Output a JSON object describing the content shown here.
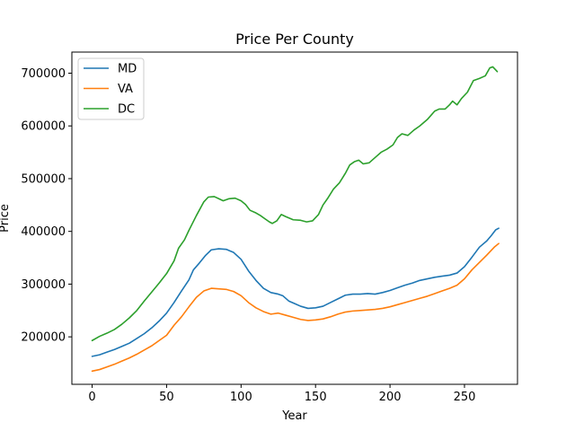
{
  "chart_data": {
    "type": "line",
    "title": "Price Per County",
    "xlabel": "Year",
    "ylabel": "Price",
    "xlim": [
      -13.6,
      285.6
    ],
    "ylim": [
      110000,
      740000
    ],
    "xticks": [
      0,
      50,
      100,
      150,
      200,
      250
    ],
    "xtick_labels": [
      "0",
      "50",
      "100",
      "150",
      "200",
      "250"
    ],
    "yticks": [
      200000,
      300000,
      400000,
      500000,
      600000,
      700000
    ],
    "ytick_labels": [
      "200000",
      "300000",
      "400000",
      "500000",
      "600000",
      "700000"
    ],
    "grid": false,
    "legend": "top-left",
    "series": [
      {
        "name": "MD",
        "color": "#1f77b4",
        "points": [
          [
            0,
            163000
          ],
          [
            5,
            166000
          ],
          [
            10,
            171000
          ],
          [
            15,
            176000
          ],
          [
            20,
            182000
          ],
          [
            25,
            188000
          ],
          [
            30,
            197000
          ],
          [
            35,
            206000
          ],
          [
            40,
            217000
          ],
          [
            45,
            230000
          ],
          [
            50,
            245000
          ],
          [
            55,
            265000
          ],
          [
            60,
            287000
          ],
          [
            65,
            308000
          ],
          [
            68,
            327000
          ],
          [
            72,
            340000
          ],
          [
            76,
            354000
          ],
          [
            80,
            365000
          ],
          [
            85,
            367000
          ],
          [
            90,
            366000
          ],
          [
            95,
            360000
          ],
          [
            100,
            347000
          ],
          [
            105,
            325000
          ],
          [
            110,
            307000
          ],
          [
            115,
            292000
          ],
          [
            120,
            284000
          ],
          [
            125,
            281000
          ],
          [
            128,
            278000
          ],
          [
            132,
            268000
          ],
          [
            136,
            263000
          ],
          [
            140,
            258000
          ],
          [
            145,
            254000
          ],
          [
            150,
            255000
          ],
          [
            155,
            258000
          ],
          [
            160,
            265000
          ],
          [
            165,
            272000
          ],
          [
            170,
            279000
          ],
          [
            175,
            281000
          ],
          [
            180,
            281000
          ],
          [
            185,
            282000
          ],
          [
            190,
            281000
          ],
          [
            195,
            284000
          ],
          [
            200,
            288000
          ],
          [
            205,
            293000
          ],
          [
            210,
            298000
          ],
          [
            215,
            302000
          ],
          [
            220,
            307000
          ],
          [
            225,
            310000
          ],
          [
            230,
            313000
          ],
          [
            235,
            315000
          ],
          [
            240,
            317000
          ],
          [
            245,
            321000
          ],
          [
            250,
            333000
          ],
          [
            255,
            351000
          ],
          [
            260,
            370000
          ],
          [
            265,
            382000
          ],
          [
            268,
            392000
          ],
          [
            271,
            403000
          ],
          [
            273,
            406000
          ]
        ]
      },
      {
        "name": "VA",
        "color": "#ff7f0e",
        "points": [
          [
            0,
            135000
          ],
          [
            5,
            138000
          ],
          [
            10,
            143000
          ],
          [
            15,
            148000
          ],
          [
            20,
            154000
          ],
          [
            25,
            160000
          ],
          [
            30,
            167000
          ],
          [
            35,
            175000
          ],
          [
            40,
            183000
          ],
          [
            45,
            193000
          ],
          [
            50,
            203000
          ],
          [
            55,
            222000
          ],
          [
            60,
            238000
          ],
          [
            65,
            257000
          ],
          [
            70,
            275000
          ],
          [
            75,
            287000
          ],
          [
            80,
            292000
          ],
          [
            85,
            291000
          ],
          [
            90,
            290000
          ],
          [
            95,
            286000
          ],
          [
            100,
            278000
          ],
          [
            105,
            265000
          ],
          [
            110,
            255000
          ],
          [
            115,
            248000
          ],
          [
            120,
            243000
          ],
          [
            125,
            245000
          ],
          [
            130,
            241000
          ],
          [
            135,
            237000
          ],
          [
            140,
            233000
          ],
          [
            145,
            231000
          ],
          [
            150,
            232000
          ],
          [
            155,
            234000
          ],
          [
            160,
            238000
          ],
          [
            165,
            243000
          ],
          [
            170,
            247000
          ],
          [
            175,
            249000
          ],
          [
            180,
            250000
          ],
          [
            185,
            251000
          ],
          [
            190,
            252000
          ],
          [
            195,
            254000
          ],
          [
            200,
            257000
          ],
          [
            205,
            261000
          ],
          [
            210,
            265000
          ],
          [
            215,
            269000
          ],
          [
            220,
            273000
          ],
          [
            225,
            277000
          ],
          [
            230,
            282000
          ],
          [
            235,
            287000
          ],
          [
            240,
            292000
          ],
          [
            245,
            298000
          ],
          [
            250,
            310000
          ],
          [
            255,
            327000
          ],
          [
            260,
            341000
          ],
          [
            265,
            355000
          ],
          [
            270,
            370000
          ],
          [
            273,
            377000
          ]
        ]
      },
      {
        "name": "DC",
        "color": "#2ca02c",
        "points": [
          [
            0,
            193000
          ],
          [
            5,
            201000
          ],
          [
            10,
            207000
          ],
          [
            15,
            214000
          ],
          [
            20,
            224000
          ],
          [
            25,
            236000
          ],
          [
            30,
            250000
          ],
          [
            35,
            268000
          ],
          [
            40,
            285000
          ],
          [
            45,
            302000
          ],
          [
            50,
            320000
          ],
          [
            55,
            344000
          ],
          [
            58,
            368000
          ],
          [
            62,
            384000
          ],
          [
            65,
            402000
          ],
          [
            70,
            430000
          ],
          [
            75,
            456000
          ],
          [
            78,
            465000
          ],
          [
            82,
            466000
          ],
          [
            85,
            462000
          ],
          [
            88,
            458000
          ],
          [
            92,
            462000
          ],
          [
            96,
            463000
          ],
          [
            100,
            458000
          ],
          [
            103,
            451000
          ],
          [
            106,
            440000
          ],
          [
            110,
            435000
          ],
          [
            113,
            430000
          ],
          [
            116,
            424000
          ],
          [
            119,
            418000
          ],
          [
            121,
            415000
          ],
          [
            124,
            420000
          ],
          [
            127,
            432000
          ],
          [
            130,
            428000
          ],
          [
            135,
            422000
          ],
          [
            140,
            421000
          ],
          [
            144,
            418000
          ],
          [
            148,
            420000
          ],
          [
            152,
            432000
          ],
          [
            155,
            450000
          ],
          [
            158,
            462000
          ],
          [
            162,
            480000
          ],
          [
            166,
            492000
          ],
          [
            170,
            510000
          ],
          [
            173,
            526000
          ],
          [
            176,
            532000
          ],
          [
            179,
            535000
          ],
          [
            182,
            528000
          ],
          [
            186,
            530000
          ],
          [
            190,
            540000
          ],
          [
            194,
            550000
          ],
          [
            198,
            556000
          ],
          [
            202,
            564000
          ],
          [
            205,
            578000
          ],
          [
            208,
            585000
          ],
          [
            212,
            582000
          ],
          [
            216,
            592000
          ],
          [
            220,
            600000
          ],
          [
            225,
            612000
          ],
          [
            230,
            628000
          ],
          [
            233,
            632000
          ],
          [
            237,
            632000
          ],
          [
            240,
            640000
          ],
          [
            242,
            647000
          ],
          [
            245,
            640000
          ],
          [
            248,
            652000
          ],
          [
            252,
            664000
          ],
          [
            256,
            686000
          ],
          [
            260,
            690000
          ],
          [
            264,
            695000
          ],
          [
            267,
            710000
          ],
          [
            269,
            712000
          ],
          [
            271,
            706000
          ],
          [
            272,
            703000
          ]
        ]
      }
    ]
  }
}
